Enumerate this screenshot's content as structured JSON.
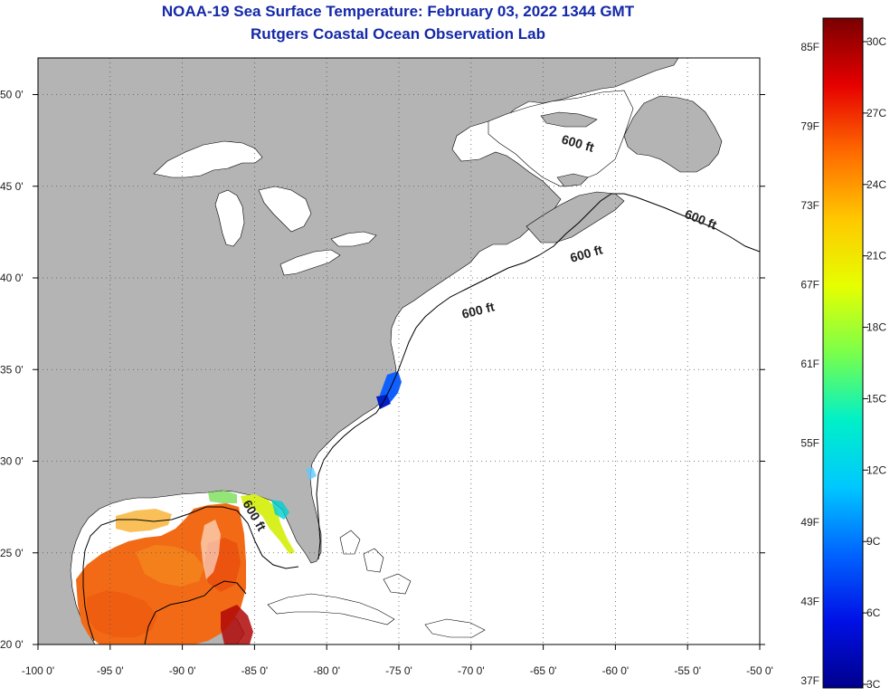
{
  "title": {
    "line1": "NOAA-19 Sea Surface Temperature:  February 03, 2022 1344 GMT",
    "line2": "Rutgers Coastal Ocean Observation Lab"
  },
  "map": {
    "lon_range": [
      -100,
      -50
    ],
    "lat_range": [
      20,
      52
    ],
    "lon_ticks": [
      {
        "value": -100,
        "label": "-100 0'"
      },
      {
        "value": -95,
        "label": "-95 0'"
      },
      {
        "value": -90,
        "label": "-90 0'"
      },
      {
        "value": -85,
        "label": "-85 0'"
      },
      {
        "value": -80,
        "label": "-80 0'"
      },
      {
        "value": -75,
        "label": "-75 0'"
      },
      {
        "value": -70,
        "label": "-70 0'"
      },
      {
        "value": -65,
        "label": "-65 0'"
      },
      {
        "value": -60,
        "label": "-60 0'"
      },
      {
        "value": -55,
        "label": "-55 0'"
      },
      {
        "value": -50,
        "label": "-50 0'"
      }
    ],
    "lat_ticks": [
      {
        "value": 50,
        "label": "50 0'"
      },
      {
        "value": 45,
        "label": "45 0'"
      },
      {
        "value": 40,
        "label": "40 0'"
      },
      {
        "value": 35,
        "label": "35 0'"
      },
      {
        "value": 30,
        "label": "30 0'"
      },
      {
        "value": 25,
        "label": "25 0'"
      },
      {
        "value": 20,
        "label": "20 0'"
      }
    ],
    "grid": "dotted",
    "contour_label": "600 ft",
    "land_color": "#b4b4b4",
    "ocean_color": "#ffffff"
  },
  "colorbar": {
    "fahrenheit_labels": [
      "85F",
      "79F",
      "73F",
      "67F",
      "61F",
      "55F",
      "49F",
      "43F",
      "37F"
    ],
    "celsius_labels": [
      "30C",
      "27C",
      "24C",
      "21C",
      "18C",
      "15C",
      "12C",
      "9C",
      "6C",
      "3C"
    ],
    "color_stops": [
      "#7a0000",
      "#e60000",
      "#ff6a00",
      "#ffc800",
      "#e6ff00",
      "#7aff4a",
      "#00f0c8",
      "#00c8ff",
      "#0064ff",
      "#0010e6",
      "#00008c"
    ]
  }
}
